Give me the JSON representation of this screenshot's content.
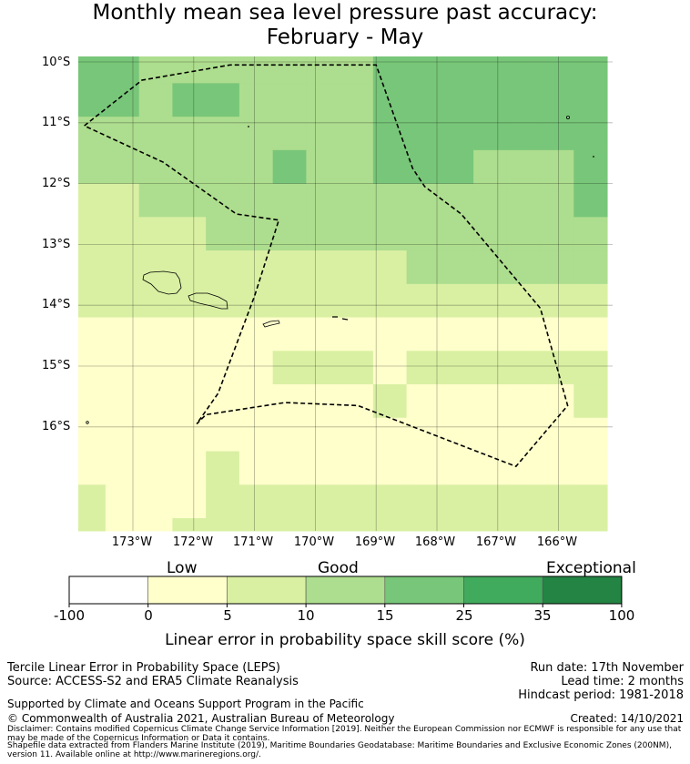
{
  "title": {
    "line1": "Monthly mean sea level pressure past accuracy:",
    "line2": "February - May"
  },
  "map": {
    "lat_labels": [
      "10°S",
      "11°S",
      "12°S",
      "13°S",
      "14°S",
      "15°S",
      "16°S"
    ],
    "lon_labels": [
      "173°W",
      "172°W",
      "171°W",
      "170°W",
      "169°W",
      "168°W",
      "167°W",
      "166°W"
    ],
    "grid_lon_start": -174.0,
    "grid_lat_start": -9.8,
    "cell_size_deg": 0.55,
    "skill_grid": [
      [
        3,
        3,
        2,
        2,
        2,
        2,
        2,
        2,
        2,
        3,
        3,
        3,
        3,
        3,
        3,
        3
      ],
      [
        3,
        3,
        2,
        3,
        3,
        2,
        2,
        2,
        2,
        3,
        3,
        3,
        3,
        3,
        3,
        3
      ],
      [
        2,
        2,
        2,
        2,
        2,
        2,
        2,
        2,
        2,
        3,
        3,
        3,
        3,
        3,
        3,
        3
      ],
      [
        2,
        2,
        2,
        2,
        2,
        2,
        3,
        2,
        2,
        3,
        3,
        3,
        2,
        2,
        2,
        3
      ],
      [
        1,
        1,
        2,
        2,
        2,
        2,
        2,
        2,
        2,
        2,
        2,
        2,
        2,
        2,
        2,
        3
      ],
      [
        1,
        1,
        1,
        1,
        2,
        2,
        2,
        2,
        2,
        2,
        2,
        2,
        2,
        2,
        2,
        2
      ],
      [
        1,
        1,
        1,
        1,
        1,
        1,
        1,
        1,
        1,
        1,
        2,
        2,
        2,
        2,
        2,
        2
      ],
      [
        1,
        1,
        1,
        1,
        1,
        1,
        1,
        1,
        1,
        1,
        1,
        1,
        1,
        1,
        1,
        1
      ],
      [
        0,
        0,
        0,
        0,
        0,
        0,
        0,
        0,
        0,
        0,
        0,
        0,
        0,
        0,
        0,
        0
      ],
      [
        0,
        0,
        0,
        0,
        0,
        0,
        1,
        1,
        1,
        0,
        1,
        1,
        1,
        1,
        1,
        1
      ],
      [
        0,
        0,
        0,
        0,
        0,
        0,
        0,
        0,
        0,
        1,
        0,
        0,
        0,
        0,
        0,
        1
      ],
      [
        0,
        0,
        0,
        0,
        0,
        0,
        0,
        0,
        0,
        0,
        0,
        0,
        0,
        0,
        0,
        0
      ],
      [
        0,
        0,
        0,
        0,
        1,
        0,
        0,
        0,
        0,
        0,
        0,
        0,
        0,
        0,
        0,
        0
      ],
      [
        1,
        0,
        0,
        0,
        1,
        1,
        1,
        1,
        1,
        1,
        1,
        1,
        1,
        1,
        1,
        1
      ],
      [
        1,
        0,
        0,
        1,
        1,
        1,
        1,
        1,
        1,
        1,
        1,
        1,
        1,
        1,
        1,
        1
      ]
    ],
    "eez_boundary_lonlat": [
      [
        -173.8,
        -11.05
      ],
      [
        -172.85,
        -10.3
      ],
      [
        -171.4,
        -10.05
      ],
      [
        -169.0,
        -10.05
      ],
      [
        -168.4,
        -11.75
      ],
      [
        -168.2,
        -12.05
      ],
      [
        -167.6,
        -12.5
      ],
      [
        -166.3,
        -14.05
      ],
      [
        -165.85,
        -15.65
      ],
      [
        -166.7,
        -16.65
      ],
      [
        -169.3,
        -15.65
      ],
      [
        -170.5,
        -15.6
      ],
      [
        -171.8,
        -15.8
      ],
      [
        -171.95,
        -15.95
      ],
      [
        -171.6,
        -15.45
      ],
      [
        -171.0,
        -13.85
      ],
      [
        -170.6,
        -12.6
      ],
      [
        -171.3,
        -12.5
      ],
      [
        -172.5,
        -11.65
      ],
      [
        -173.8,
        -11.05
      ]
    ]
  },
  "colorbar": {
    "category_labels": [
      "Low",
      "Good",
      "Exceptional"
    ],
    "tick_labels": [
      "-100",
      "0",
      "5",
      "10",
      "15",
      "25",
      "35",
      "100"
    ],
    "colors": [
      "#ffffff",
      "#ffffcc",
      "#d9f0a3",
      "#addd8e",
      "#78c679",
      "#41ab5d",
      "#238443"
    ],
    "label": "Linear error in probability space skill score (%)"
  },
  "info": {
    "method": "Tercile Linear Error in Probability Space (LEPS)",
    "source": "Source: ACCESS-S2 and ERA5 Climate Reanalysis",
    "run_date": "Run date: 17th November",
    "lead_time": "Lead time: 2 months",
    "hindcast": "Hindcast period: 1981-2018",
    "support": "Supported by Climate and Oceans Support Program in the Pacific",
    "copyright": "© Commonwealth of Australia 2021, Australian Bureau of Meteorology",
    "created": "Created: 14/10/2021",
    "disclaimer": "Disclaimer: Contains modified Copernicus Climate Change Service Information [2019]. Neither the European Commission nor ECMWF is responsible for any use that may be made of the Copernicus Information or Data it contains.",
    "shapefile": "Shapefile data extracted from Flanders Marine Institute (2019), Maritime Boundaries Geodatabase: Maritime Boundaries and Exclusive Economic Zones (200NM), version 11. Available online at http://www.marineregions.org/."
  }
}
